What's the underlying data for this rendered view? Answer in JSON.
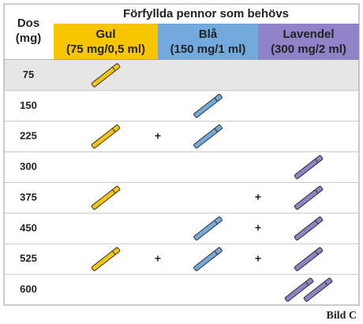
{
  "table": {
    "dose_title": "Dos",
    "dose_unit": "(mg)",
    "group_title": "Förfyllda pennor som behövs",
    "columns": [
      {
        "name": "Gul",
        "strength": "(75 mg/0,5 ml)",
        "color": "#f7c600"
      },
      {
        "name": "Blå",
        "strength": "(150 mg/1 ml)",
        "color": "#73aade"
      },
      {
        "name": "Lavendel",
        "strength": "(300 mg/2 ml)",
        "color": "#8f82c8"
      }
    ],
    "rows": [
      {
        "dose": 75,
        "pens": [
          1,
          0,
          0
        ]
      },
      {
        "dose": 150,
        "pens": [
          0,
          1,
          0
        ]
      },
      {
        "dose": 225,
        "pens": [
          1,
          1,
          0
        ]
      },
      {
        "dose": 300,
        "pens": [
          0,
          0,
          1
        ]
      },
      {
        "dose": 375,
        "pens": [
          1,
          0,
          1
        ]
      },
      {
        "dose": 450,
        "pens": [
          0,
          1,
          1
        ]
      },
      {
        "dose": 525,
        "pens": [
          1,
          1,
          1
        ]
      },
      {
        "dose": 600,
        "pens": [
          0,
          0,
          2
        ]
      }
    ],
    "plus_sign": "+"
  },
  "caption": "Bild C"
}
